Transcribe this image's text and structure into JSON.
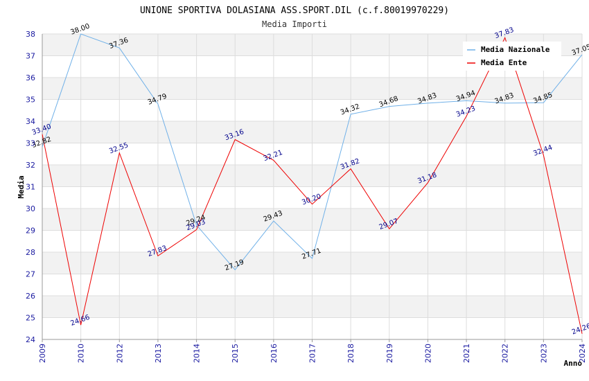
{
  "chart_data": {
    "type": "line",
    "title": "UNIONE SPORTIVA DOLASIANA ASS.SPORT.DIL (c.f.80019970229)",
    "subtitle": "Media Importi",
    "xlabel": "Anno",
    "ylabel": "Media",
    "ylim": [
      24,
      38
    ],
    "yticks": [
      "24",
      "25",
      "26",
      "27",
      "28",
      "29",
      "30",
      "31",
      "32",
      "33",
      "34",
      "35",
      "36",
      "37",
      "38"
    ],
    "categories": [
      "2009",
      "2010",
      "2012",
      "2013",
      "2014",
      "2015",
      "2016",
      "2017",
      "2018",
      "2019",
      "2020",
      "2021",
      "2022",
      "2023",
      "2024"
    ],
    "legend_position": "top-right",
    "series": [
      {
        "name": "Media Nazionale",
        "color": "#6fb0e8",
        "label_color": "#000000",
        "values": [
          32.82,
          38.0,
          37.36,
          34.79,
          29.24,
          27.19,
          29.43,
          27.71,
          34.32,
          34.68,
          34.83,
          34.94,
          34.83,
          34.85,
          37.05
        ],
        "labels": [
          "32.82",
          "38.00",
          "37.36",
          "34.79",
          "29.24",
          "27.19",
          "29.43",
          "27.71",
          "34.32",
          "34.68",
          "34.83",
          "34.94",
          "34.83",
          "34.85",
          "37.05"
        ]
      },
      {
        "name": "Media Ente",
        "color": "#ee0000",
        "label_color": "#00008b",
        "values": [
          33.4,
          24.66,
          32.55,
          27.83,
          29.03,
          33.16,
          32.21,
          30.2,
          31.82,
          29.07,
          31.18,
          34.23,
          37.83,
          32.44,
          24.26
        ],
        "labels": [
          "33.40",
          "24.66",
          "32.55",
          "27.83",
          "29.03",
          "33.16",
          "32.21",
          "30.20",
          "31.82",
          "29.07",
          "31.18",
          "34.23",
          "37.83",
          "32.44",
          "24.26"
        ]
      }
    ]
  }
}
